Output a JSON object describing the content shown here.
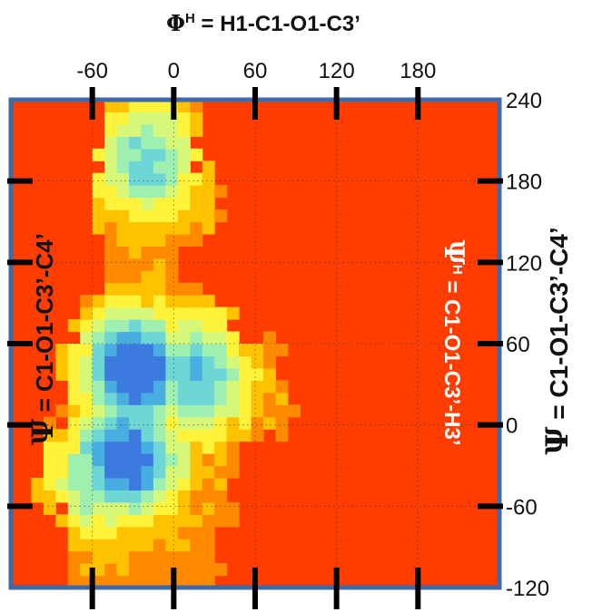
{
  "chart_data": {
    "type": "heatmap",
    "title_top": {
      "symbol": "Φ",
      "sup": "H",
      "rest": " = H1-C1-O1-C3’"
    },
    "ylabel_right": {
      "symbol": "Ψ",
      "rest": " = C1-O1-C3’-C4’"
    },
    "ylabel_inner_left": {
      "symbol": "Ψ",
      "rest": " = C1-O1-C3’-C4’"
    },
    "ylabel_inner_right": {
      "symbol": "Ψ",
      "sup": "H",
      "rest": " = C1-O1-C3’-H3’"
    },
    "x_ticks": [
      -60,
      0,
      60,
      120,
      180
    ],
    "y_ticks": [
      240,
      180,
      120,
      60,
      0,
      -60,
      -120
    ],
    "xlim": [
      -120,
      240
    ],
    "ylim": [
      -120,
      240
    ],
    "grid": true,
    "background_color": "#ff3d00",
    "frame_color": "#3f6aa8",
    "colormap": [
      "#ff3d00",
      "#ff8a00",
      "#ffc200",
      "#fff23a",
      "#d6f778",
      "#9ff0b0",
      "#6fd6d6",
      "#48aee0",
      "#3d7ae0"
    ],
    "density_peaks": [
      {
        "x": -28,
        "y": 40,
        "level": 1.0
      },
      {
        "x": -35,
        "y": -25,
        "level": 0.95
      },
      {
        "x": -20,
        "y": 195,
        "level": 0.6
      },
      {
        "x": 15,
        "y": 35,
        "level": 0.7
      },
      {
        "x": -55,
        "y": -40,
        "level": 0.55
      }
    ]
  }
}
